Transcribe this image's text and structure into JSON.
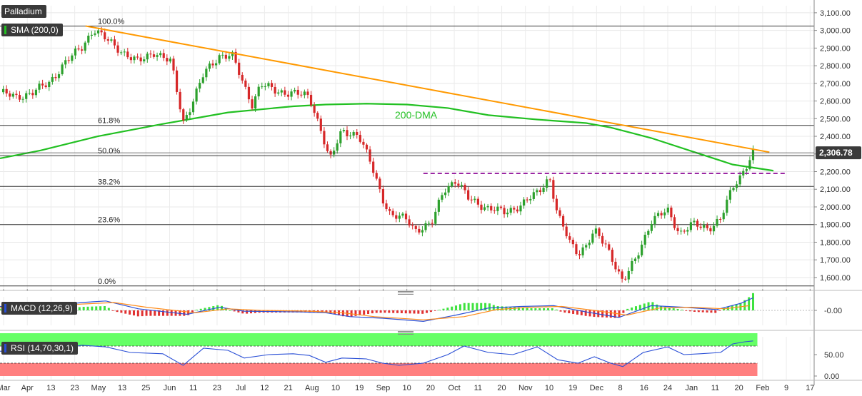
{
  "instrument": "Palladium",
  "indicators": {
    "sma": "SMA (200,0)",
    "macd": "MACD (12,26,9)",
    "rsi": "RSI (14,70,30,1)"
  },
  "colors": {
    "up": "#2ca02c",
    "down": "#d62728",
    "sma": "#22c022",
    "trend": "#ff9900",
    "fib": "#333333",
    "resistance": "#9b27a3",
    "macd": "#2a4fd6",
    "signal": "#ff8c1a",
    "rsi": "#2a4fd6",
    "overbought": "#66ff66",
    "oversold": "#ff7f7f",
    "priceTag": "#3a3a3a"
  },
  "chart_data": {
    "type": "candlestick",
    "y_ticks": [
      "3,100.00",
      "3,000.00",
      "2,900.00",
      "2,800.00",
      "2,700.00",
      "2,600.00",
      "2,500.00",
      "2,400.00",
      "2,300.00",
      "2,200.00",
      "2,100.00",
      "2,000.00",
      "1,900.00",
      "1,800.00",
      "1,700.00",
      "1,600.00"
    ],
    "ylim": [
      1535,
      3140
    ],
    "x_labels": [
      "Mar",
      "Apr",
      "13",
      "23",
      "May",
      "13",
      "25",
      "Jun",
      "11",
      "23",
      "Jul",
      "12",
      "21",
      "Aug",
      "10",
      "19",
      "Sep",
      "10",
      "20",
      "Oct",
      "11",
      "20",
      "Nov",
      "10",
      "19",
      "Dec",
      "8",
      "16",
      "24",
      "Jan",
      "11",
      "20",
      "Feb",
      "9",
      "17"
    ],
    "last_price": "2,306.78",
    "annotation": "200-DMA",
    "fib_levels": [
      {
        "label": "100.0%",
        "value": 3025
      },
      {
        "label": "61.8%",
        "value": 2462
      },
      {
        "label": "50.0%",
        "value": 2290
      },
      {
        "label": "38.2%",
        "value": 2116
      },
      {
        "label": "23.6%",
        "value": 1900
      },
      {
        "label": "0.0%",
        "value": 1552
      }
    ],
    "trendline": {
      "from": [
        0.105,
        3025
      ],
      "to": [
        0.945,
        2310
      ]
    },
    "resistance": {
      "value": 2190,
      "from": 0.52,
      "to": 0.965
    },
    "sma_200": [
      [
        0,
        2275
      ],
      [
        0.05,
        2320
      ],
      [
        0.12,
        2400
      ],
      [
        0.2,
        2470
      ],
      [
        0.28,
        2535
      ],
      [
        0.36,
        2570
      ],
      [
        0.4,
        2580
      ],
      [
        0.45,
        2585
      ],
      [
        0.5,
        2580
      ],
      [
        0.55,
        2560
      ],
      [
        0.6,
        2520
      ],
      [
        0.66,
        2495
      ],
      [
        0.72,
        2475
      ],
      [
        0.75,
        2450
      ],
      [
        0.8,
        2390
      ],
      [
        0.86,
        2300
      ],
      [
        0.9,
        2240
      ],
      [
        0.95,
        2205
      ]
    ],
    "price_path": [
      [
        0,
        2650
      ],
      [
        0.02,
        2620
      ],
      [
        0.04,
        2650
      ],
      [
        0.06,
        2700
      ],
      [
        0.08,
        2820
      ],
      [
        0.1,
        2900
      ],
      [
        0.115,
        3010
      ],
      [
        0.13,
        2950
      ],
      [
        0.15,
        2880
      ],
      [
        0.17,
        2820
      ],
      [
        0.19,
        2880
      ],
      [
        0.21,
        2820
      ],
      [
        0.225,
        2480
      ],
      [
        0.235,
        2580
      ],
      [
        0.25,
        2750
      ],
      [
        0.27,
        2860
      ],
      [
        0.285,
        2860
      ],
      [
        0.3,
        2680
      ],
      [
        0.31,
        2580
      ],
      [
        0.32,
        2700
      ],
      [
        0.34,
        2650
      ],
      [
        0.36,
        2650
      ],
      [
        0.38,
        2620
      ],
      [
        0.395,
        2430
      ],
      [
        0.405,
        2260
      ],
      [
        0.42,
        2430
      ],
      [
        0.44,
        2410
      ],
      [
        0.455,
        2250
      ],
      [
        0.47,
        2050
      ],
      [
        0.48,
        1950
      ],
      [
        0.5,
        1930
      ],
      [
        0.51,
        1870
      ],
      [
        0.53,
        1900
      ],
      [
        0.545,
        2100
      ],
      [
        0.56,
        2150
      ],
      [
        0.575,
        2050
      ],
      [
        0.6,
        1990
      ],
      [
        0.62,
        1970
      ],
      [
        0.64,
        2010
      ],
      [
        0.66,
        2080
      ],
      [
        0.675,
        2170
      ],
      [
        0.685,
        1950
      ],
      [
        0.7,
        1800
      ],
      [
        0.71,
        1740
      ],
      [
        0.72,
        1780
      ],
      [
        0.73,
        1860
      ],
      [
        0.745,
        1780
      ],
      [
        0.755,
        1680
      ],
      [
        0.765,
        1570
      ],
      [
        0.78,
        1700
      ],
      [
        0.8,
        1920
      ],
      [
        0.82,
        1980
      ],
      [
        0.835,
        1850
      ],
      [
        0.85,
        1900
      ],
      [
        0.87,
        1880
      ],
      [
        0.885,
        1930
      ],
      [
        0.9,
        2110
      ],
      [
        0.91,
        2180
      ],
      [
        0.925,
        2306
      ]
    ],
    "macd": [
      [
        0,
        0.5
      ],
      [
        0.05,
        0.3
      ],
      [
        0.1,
        1.0
      ],
      [
        0.13,
        1.2
      ],
      [
        0.17,
        0.2
      ],
      [
        0.23,
        -0.5
      ],
      [
        0.27,
        0.4
      ],
      [
        0.3,
        -0.1
      ],
      [
        0.37,
        -0.2
      ],
      [
        0.4,
        -0.3
      ],
      [
        0.43,
        -0.8
      ],
      [
        0.47,
        -1.0
      ],
      [
        0.52,
        -1.4
      ],
      [
        0.56,
        -0.6
      ],
      [
        0.6,
        0.3
      ],
      [
        0.64,
        0.5
      ],
      [
        0.68,
        0.6
      ],
      [
        0.72,
        -0.2
      ],
      [
        0.76,
        -0.9
      ],
      [
        0.8,
        0.6
      ],
      [
        0.84,
        0.4
      ],
      [
        0.88,
        0.1
      ],
      [
        0.91,
        0.9
      ],
      [
        0.925,
        1.6
      ]
    ],
    "macd_signal": [
      [
        0,
        0.4
      ],
      [
        0.05,
        0.4
      ],
      [
        0.1,
        0.8
      ],
      [
        0.14,
        1.0
      ],
      [
        0.18,
        0.4
      ],
      [
        0.24,
        -0.3
      ],
      [
        0.28,
        0.2
      ],
      [
        0.32,
        0.0
      ],
      [
        0.38,
        -0.1
      ],
      [
        0.42,
        -0.3
      ],
      [
        0.46,
        -0.8
      ],
      [
        0.52,
        -1.2
      ],
      [
        0.57,
        -0.8
      ],
      [
        0.61,
        0.1
      ],
      [
        0.65,
        0.4
      ],
      [
        0.69,
        0.5
      ],
      [
        0.73,
        0.0
      ],
      [
        0.77,
        -0.6
      ],
      [
        0.81,
        0.3
      ],
      [
        0.85,
        0.4
      ],
      [
        0.89,
        0.2
      ],
      [
        0.92,
        0.6
      ]
    ],
    "macd_ticks": [
      "-0.00"
    ],
    "rsi_ticks": [
      "50.00",
      "0.00"
    ],
    "rsi": [
      [
        0,
        58
      ],
      [
        0.05,
        52
      ],
      [
        0.1,
        72
      ],
      [
        0.13,
        68
      ],
      [
        0.16,
        55
      ],
      [
        0.2,
        52
      ],
      [
        0.225,
        25
      ],
      [
        0.25,
        65
      ],
      [
        0.28,
        60
      ],
      [
        0.3,
        42
      ],
      [
        0.33,
        50
      ],
      [
        0.36,
        52
      ],
      [
        0.38,
        48
      ],
      [
        0.4,
        32
      ],
      [
        0.42,
        42
      ],
      [
        0.45,
        40
      ],
      [
        0.47,
        30
      ],
      [
        0.49,
        25
      ],
      [
        0.52,
        30
      ],
      [
        0.55,
        50
      ],
      [
        0.57,
        70
      ],
      [
        0.6,
        55
      ],
      [
        0.63,
        50
      ],
      [
        0.66,
        68
      ],
      [
        0.685,
        38
      ],
      [
        0.71,
        30
      ],
      [
        0.73,
        45
      ],
      [
        0.75,
        30
      ],
      [
        0.765,
        22
      ],
      [
        0.79,
        55
      ],
      [
        0.82,
        68
      ],
      [
        0.84,
        50
      ],
      [
        0.86,
        52
      ],
      [
        0.885,
        55
      ],
      [
        0.9,
        75
      ],
      [
        0.915,
        80
      ],
      [
        0.925,
        82
      ]
    ],
    "rsi_levels": {
      "overbought": 70,
      "oversold": 30
    }
  }
}
